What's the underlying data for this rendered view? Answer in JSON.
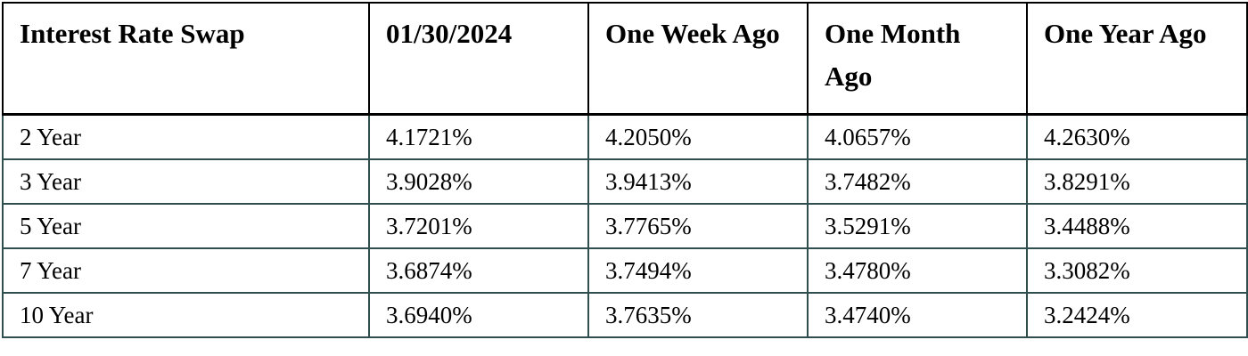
{
  "table": {
    "headers": [
      "Interest Rate Swap",
      "01/30/2024",
      "One Week Ago",
      "One Month Ago",
      "One Year Ago"
    ],
    "rows": [
      [
        "2 Year",
        "4.1721%",
        "4.2050%",
        "4.0657%",
        "4.2630%"
      ],
      [
        "3 Year",
        "3.9028%",
        "3.9413%",
        "3.7482%",
        "3.8291%"
      ],
      [
        "5 Year",
        "3.7201%",
        "3.7765%",
        "3.5291%",
        "3.4488%"
      ],
      [
        "7 Year",
        "3.6874%",
        "3.7494%",
        "3.4780%",
        "3.3082%"
      ],
      [
        "10 Year",
        "3.6940%",
        "3.7635%",
        "3.4740%",
        "3.2424%"
      ]
    ],
    "header_border_color": "#000000",
    "body_border_color": "#2f4f4f"
  }
}
